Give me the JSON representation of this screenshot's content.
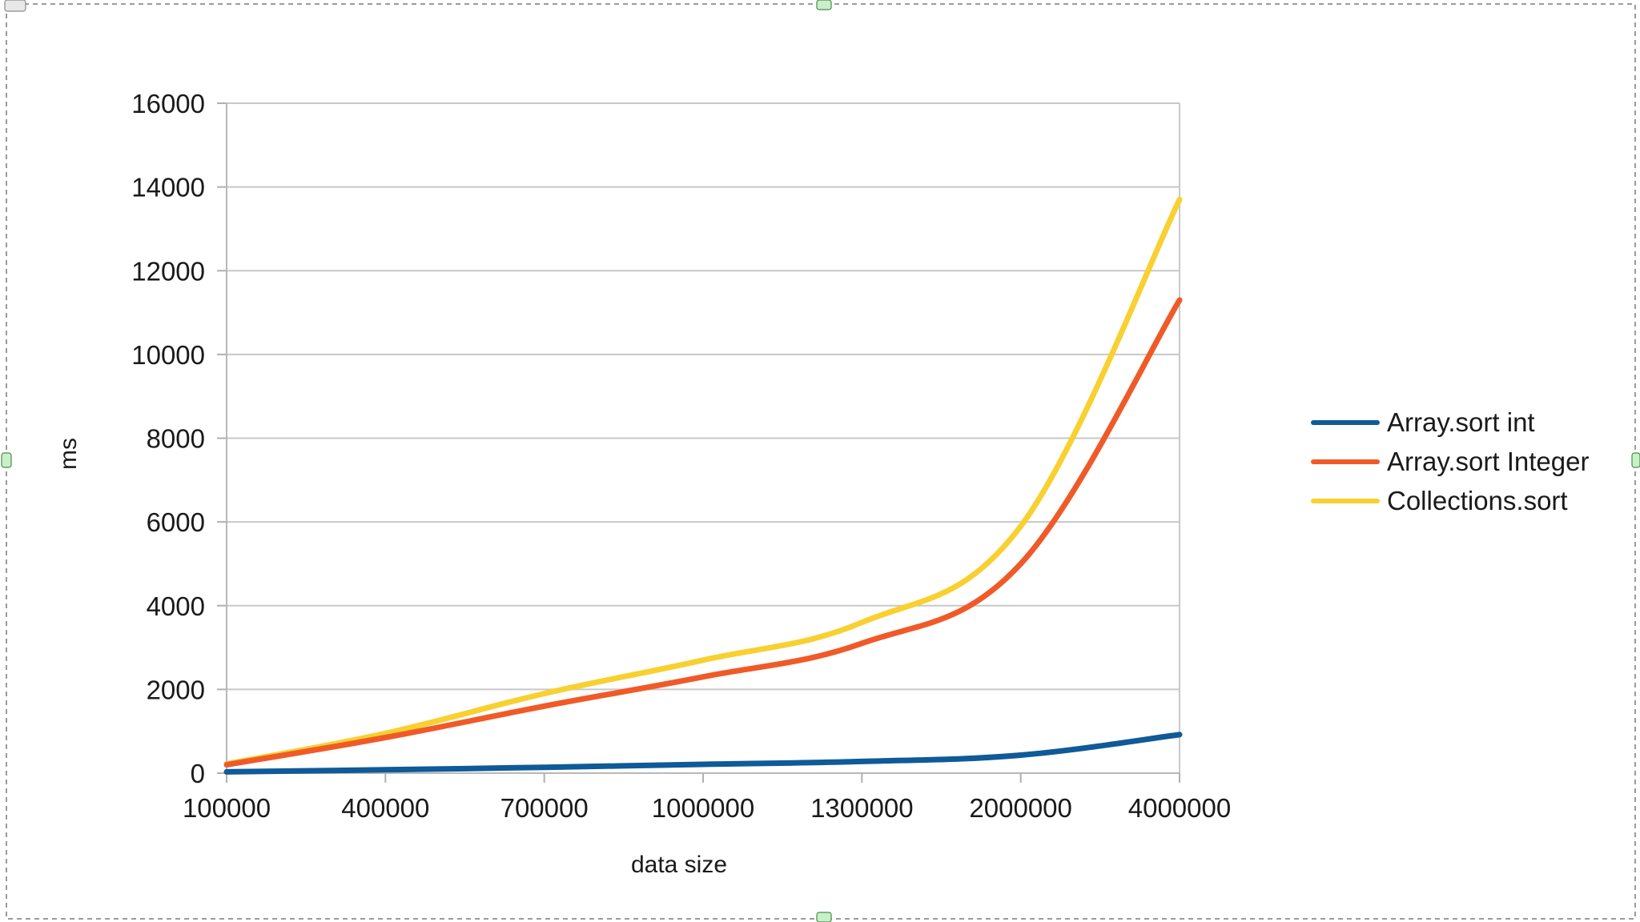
{
  "chart_data": {
    "type": "line",
    "title": "",
    "xlabel": "data size",
    "ylabel": "ms",
    "categories": [
      "100000",
      "400000",
      "700000",
      "1000000",
      "1300000",
      "2000000",
      "4000000"
    ],
    "ylim": [
      0,
      16000
    ],
    "yticks": [
      0,
      2000,
      4000,
      6000,
      8000,
      10000,
      12000,
      14000,
      16000
    ],
    "grid": true,
    "legend": "right",
    "series": [
      {
        "name": "Array.sort int",
        "color": "#0f5a98",
        "values": [
          30,
          80,
          140,
          210,
          280,
          430,
          920
        ]
      },
      {
        "name": "Array.sort Integer",
        "color": "#f05a28",
        "values": [
          200,
          850,
          1600,
          2300,
          3100,
          5000,
          11300
        ]
      },
      {
        "name": "Collections.sort",
        "color": "#f8d030",
        "values": [
          220,
          950,
          1900,
          2700,
          3600,
          5900,
          13700
        ]
      }
    ]
  }
}
